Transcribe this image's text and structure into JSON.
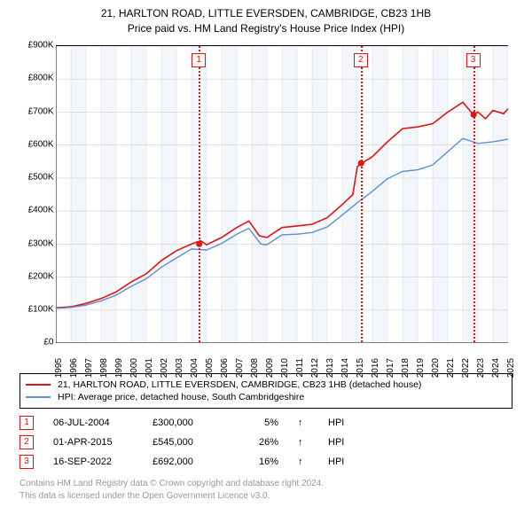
{
  "title_line1": "21, HARLTON ROAD, LITTLE EVERSDEN, CAMBRIDGE, CB23 1HB",
  "title_line2": "Price paid vs. HM Land Registry's House Price Index (HPI)",
  "chart": {
    "type": "line",
    "background_color": "#ffffff",
    "alt_band_color": "#f3f7fb",
    "axis_color": "#000000",
    "grid_color": "#d0d0d0",
    "y": {
      "min": 0,
      "max": 900000,
      "step": 100000,
      "prefix": "£",
      "suffixes_K": true,
      "ticks": [
        0,
        100000,
        200000,
        300000,
        400000,
        500000,
        600000,
        700000,
        800000,
        900000
      ]
    },
    "x": {
      "years": [
        1995,
        1996,
        1997,
        1998,
        1999,
        2000,
        2001,
        2002,
        2003,
        2004,
        2005,
        2006,
        2007,
        2008,
        2009,
        2010,
        2011,
        2012,
        2013,
        2014,
        2015,
        2016,
        2017,
        2018,
        2019,
        2020,
        2021,
        2022,
        2023,
        2024,
        2025
      ]
    },
    "series": [
      {
        "id": "prop",
        "color": "#e11313",
        "width": 1.6,
        "label": "21, HARLTON ROAD, LITTLE EVERSDEN, CAMBRIDGE, CB23 1HB (detached house)",
        "points": [
          [
            1995,
            107000
          ],
          [
            1996,
            110000
          ],
          [
            1997,
            120000
          ],
          [
            1998,
            135000
          ],
          [
            1999,
            155000
          ],
          [
            2000,
            185000
          ],
          [
            2001,
            210000
          ],
          [
            2002,
            250000
          ],
          [
            2003,
            280000
          ],
          [
            2004,
            300000
          ],
          [
            2004.6,
            310000
          ],
          [
            2005,
            298000
          ],
          [
            2006,
            320000
          ],
          [
            2007,
            350000
          ],
          [
            2007.8,
            370000
          ],
          [
            2008.5,
            325000
          ],
          [
            2009,
            320000
          ],
          [
            2010,
            350000
          ],
          [
            2011,
            355000
          ],
          [
            2012,
            360000
          ],
          [
            2013,
            380000
          ],
          [
            2014,
            420000
          ],
          [
            2014.7,
            450000
          ],
          [
            2015,
            535000
          ],
          [
            2015.3,
            545000
          ],
          [
            2016,
            565000
          ],
          [
            2017,
            610000
          ],
          [
            2018,
            650000
          ],
          [
            2019,
            655000
          ],
          [
            2020,
            665000
          ],
          [
            2021,
            700000
          ],
          [
            2022,
            730000
          ],
          [
            2022.7,
            692000
          ],
          [
            2023,
            700000
          ],
          [
            2023.5,
            680000
          ],
          [
            2024,
            705000
          ],
          [
            2024.7,
            695000
          ],
          [
            2025,
            710000
          ]
        ]
      },
      {
        "id": "hpi",
        "color": "#5b8fd6",
        "width": 1.4,
        "label": "HPI: Average price, detached house, South Cambridgeshire",
        "points": [
          [
            1995,
            105000
          ],
          [
            1996,
            108000
          ],
          [
            1997,
            115000
          ],
          [
            1998,
            128000
          ],
          [
            1999,
            145000
          ],
          [
            2000,
            172000
          ],
          [
            2001,
            195000
          ],
          [
            2002,
            230000
          ],
          [
            2003,
            258000
          ],
          [
            2004,
            285000
          ],
          [
            2005,
            282000
          ],
          [
            2006,
            302000
          ],
          [
            2007,
            330000
          ],
          [
            2007.8,
            348000
          ],
          [
            2008.6,
            300000
          ],
          [
            2009,
            298000
          ],
          [
            2010,
            328000
          ],
          [
            2011,
            330000
          ],
          [
            2012,
            335000
          ],
          [
            2013,
            352000
          ],
          [
            2014,
            388000
          ],
          [
            2015,
            425000
          ],
          [
            2016,
            460000
          ],
          [
            2017,
            498000
          ],
          [
            2018,
            520000
          ],
          [
            2019,
            525000
          ],
          [
            2020,
            540000
          ],
          [
            2021,
            580000
          ],
          [
            2022,
            620000
          ],
          [
            2023,
            605000
          ],
          [
            2024,
            610000
          ],
          [
            2025,
            618000
          ]
        ]
      }
    ],
    "event_markers": [
      {
        "n": "1",
        "year": 2004.51,
        "color": "#e11313",
        "box_y": 50000
      },
      {
        "n": "2",
        "year": 2015.25,
        "color": "#e11313",
        "box_y": 50000
      },
      {
        "n": "3",
        "year": 2022.71,
        "color": "#e11313",
        "box_y": 50000
      }
    ],
    "sale_dots": [
      {
        "year": 2004.51,
        "value": 300000,
        "color": "#e11313"
      },
      {
        "year": 2015.25,
        "value": 545000,
        "color": "#e11313"
      },
      {
        "year": 2022.71,
        "value": 692000,
        "color": "#e11313"
      }
    ]
  },
  "legend": [
    {
      "color": "#e11313",
      "text": "21, HARLTON ROAD, LITTLE EVERSDEN, CAMBRIDGE, CB23 1HB (detached house)"
    },
    {
      "color": "#5b8fd6",
      "text": "HPI: Average price, detached house, South Cambridgeshire"
    }
  ],
  "events": [
    {
      "n": "1",
      "color": "#e11313",
      "date": "06-JUL-2004",
      "price": "£300,000",
      "pct": "5%",
      "arrow": "↑",
      "suffix": "HPI"
    },
    {
      "n": "2",
      "color": "#e11313",
      "date": "01-APR-2015",
      "price": "£545,000",
      "pct": "26%",
      "arrow": "↑",
      "suffix": "HPI"
    },
    {
      "n": "3",
      "color": "#e11313",
      "date": "16-SEP-2022",
      "price": "£692,000",
      "pct": "16%",
      "arrow": "↑",
      "suffix": "HPI"
    }
  ],
  "footer_line1": "Contains HM Land Registry data © Crown copyright and database right 2024.",
  "footer_line2": "This data is licensed under the Open Government Licence v3.0."
}
